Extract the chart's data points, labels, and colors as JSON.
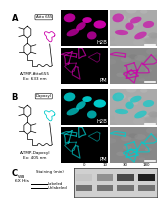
{
  "label_A": "A-TMP-Atto655\nEx: 633 nm",
  "label_B": "A-TMP-Dapoxyl\nEx: 405 nm",
  "wb_label": "WB\n6X His",
  "staining_label": "Staining (min)",
  "staining_times": [
    "0",
    "10",
    "30",
    "180"
  ],
  "band_labels": [
    "Labeled",
    "Unlabeled"
  ],
  "atto655_color": "#cc00aa",
  "atto655_merge_bg": "#b0b0b0",
  "dapoxyl_color": "#00cccc",
  "dapoxyl_merge_bg": "#808080",
  "white": "#ffffff",
  "black": "#000000",
  "section_labels": [
    "A",
    "B",
    "C"
  ],
  "row_labels": [
    "H2B",
    "PM"
  ]
}
